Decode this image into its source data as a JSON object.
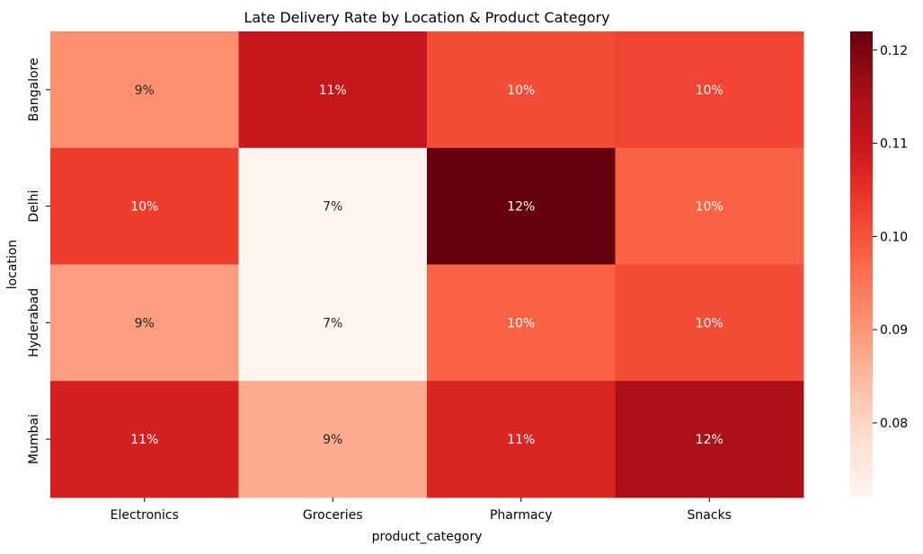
{
  "chart_data": {
    "type": "heatmap",
    "title": "Late Delivery Rate by Location & Product Category",
    "xlabel": "product_category",
    "ylabel": "location",
    "x_categories": [
      "Electronics",
      "Groceries",
      "Pharmacy",
      "Snacks"
    ],
    "y_categories": [
      "Bangalore",
      "Delhi",
      "Hyderabad",
      "Mumbai"
    ],
    "values": [
      [
        0.091,
        0.11,
        0.101,
        0.102
      ],
      [
        0.103,
        0.072,
        0.122,
        0.098
      ],
      [
        0.089,
        0.072,
        0.098,
        0.101
      ],
      [
        0.108,
        0.087,
        0.107,
        0.115
      ]
    ],
    "annotations": [
      [
        "9%",
        "11%",
        "10%",
        "10%"
      ],
      [
        "10%",
        "7%",
        "12%",
        "10%"
      ],
      [
        "9%",
        "7%",
        "10%",
        "10%"
      ],
      [
        "11%",
        "9%",
        "11%",
        "12%"
      ]
    ],
    "colormap": "Reds",
    "colorbar": {
      "vmin": 0.072,
      "vmax": 0.122,
      "ticks": [
        0.08,
        0.09,
        0.1,
        0.11,
        0.12
      ],
      "tick_labels": [
        "0.08",
        "0.09",
        "0.10",
        "0.11",
        "0.12"
      ]
    },
    "grid": false,
    "legend": "colorbar-right"
  }
}
